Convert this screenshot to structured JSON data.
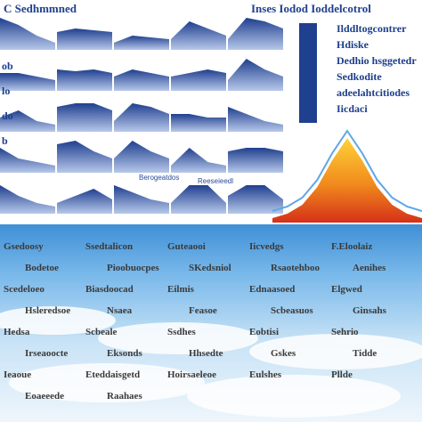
{
  "header": {
    "title_left": "C Sedhmmned",
    "title_right": "Inses Iodod Ioddelcotrol"
  },
  "legend": {
    "entries": [
      "Ilddltogcontrer",
      "Hdiske",
      "Dedhio hsggetedr",
      "Sedkodite",
      "adeelahtcitiodes",
      "Iicdaci"
    ],
    "colors": [
      "#1f3f8f"
    ]
  },
  "side_labels": [
    "ob",
    "lo",
    "do",
    "b"
  ],
  "mini_labels": [
    "Berogeatdos",
    "Reeseieedl"
  ],
  "colors": {
    "accent_blue": "#1f3f8f",
    "peak_yellow": "#ffd23a",
    "peak_orange": "#f08a1c",
    "peak_red": "#d6301a",
    "sea_blue": "#6fb3e6"
  },
  "chart_data": [
    {
      "type": "area",
      "title": "",
      "grid_rows": 5,
      "grid_cols": 5,
      "panels": [
        [
          [
            0.9,
            0.7,
            0.4,
            0.2
          ],
          [
            0.5,
            0.6,
            0.55,
            0.5
          ],
          [
            0.2,
            0.4,
            0.35,
            0.3
          ],
          [
            0.3,
            0.8,
            0.6,
            0.4
          ],
          [
            0.3,
            0.9,
            0.8,
            0.6
          ]
        ],
        [
          [
            0.5,
            0.5,
            0.4,
            0.3
          ],
          [
            0.6,
            0.55,
            0.6,
            0.5
          ],
          [
            0.4,
            0.6,
            0.5,
            0.4
          ],
          [
            0.4,
            0.5,
            0.6,
            0.5
          ],
          [
            0.3,
            0.9,
            0.6,
            0.4
          ]
        ],
        [
          [
            0.4,
            0.6,
            0.3,
            0.2
          ],
          [
            0.7,
            0.8,
            0.8,
            0.6
          ],
          [
            0.3,
            0.8,
            0.7,
            0.5
          ],
          [
            0.5,
            0.5,
            0.4,
            0.4
          ],
          [
            0.7,
            0.5,
            0.3,
            0.2
          ]
        ],
        [
          [
            0.7,
            0.4,
            0.3,
            0.2
          ],
          [
            0.8,
            0.9,
            0.6,
            0.4
          ],
          [
            0.4,
            0.9,
            0.6,
            0.4
          ],
          [
            0.2,
            0.7,
            0.3,
            0.2
          ],
          [
            0.6,
            0.7,
            0.7,
            0.6
          ]
        ],
        [
          [
            0.8,
            0.5,
            0.3,
            0.2
          ],
          [
            0.3,
            0.5,
            0.7,
            0.4
          ],
          [
            0.8,
            0.6,
            0.4,
            0.3
          ],
          [
            0.3,
            0.8,
            0.8,
            0.3
          ],
          [
            0.5,
            0.8,
            0.8,
            0.4
          ]
        ]
      ]
    },
    {
      "type": "area",
      "title": "",
      "x": [
        0,
        1,
        2,
        3,
        4,
        5,
        6,
        7,
        8,
        9,
        10
      ],
      "series": [
        {
          "values": [
            0.05,
            0.1,
            0.2,
            0.4,
            0.7,
            0.95,
            0.7,
            0.4,
            0.2,
            0.1,
            0.05
          ]
        }
      ],
      "ylim": [
        0,
        1
      ]
    }
  ],
  "sea_labels": [
    "Gsedoosy",
    "Ssedtalicon",
    "Guteaooi",
    "Iicvedgs",
    "F.Eloolaiz",
    "Bodetoe",
    "Pioobuocpes",
    "SKedsniol",
    "Rsaotehboo",
    "Aenihes",
    "Scedeloeo",
    "Biasdoocad",
    "Eilmis",
    "Ednaasoed",
    "Elgwed",
    "Hsleredsoe",
    "Nsaea",
    "Feasoe",
    "Scbeasuos",
    "Ginsahs",
    "Hedsa",
    "Scbeale",
    "Ssdhes",
    "Eobtisi",
    "Sehrio",
    "Irseaoocte",
    "Eksonds",
    "Hhsedte",
    "Gskes",
    "Tidde",
    "Ieaoue",
    "Eteddaisgetd",
    "Hoirsaeleoe",
    "Eulshes",
    "Pllde",
    "Eoaeeede",
    "Raahaes"
  ]
}
